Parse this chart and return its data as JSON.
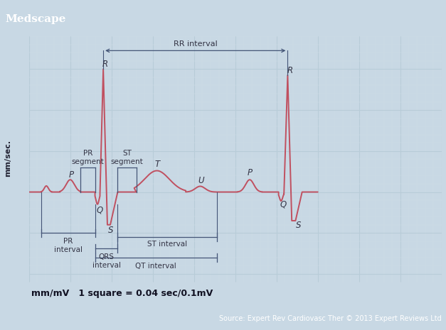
{
  "title": "Medscape",
  "title_bg": "#1a6fa0",
  "title_color": "white",
  "ecg_color": "#c05060",
  "grid_minor_color": "#d0dde8",
  "grid_major_color": "#b8ccd8",
  "bg_outer": "#c8d8e4",
  "plot_bg": "#f0f4f8",
  "annotation_color": "#333344",
  "bracket_color": "#445577",
  "bottom_text": "mm/mV   1 square = 0.04 sec/0.1mV",
  "source_text": "Source: Expert Rev Cardiovasc Ther © 2013 Expert Reviews Ltd",
  "ylabel": "mm/sec.",
  "font_size_title": 11,
  "font_size_annot": 8,
  "font_size_bottom": 9,
  "font_size_source": 7
}
